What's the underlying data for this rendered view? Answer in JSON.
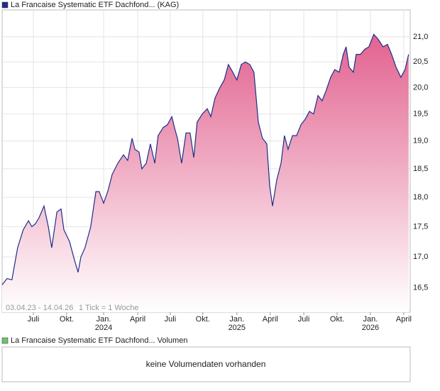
{
  "chart_data": {
    "type": "area",
    "log_scale": true,
    "grid": true,
    "series": [
      {
        "name": "La Francaise Systematic ETF Dachfond... (KAG)",
        "color": "#1f2d8a",
        "fill": "#e2628f",
        "x": [
          0,
          1.9,
          3.8,
          6.0,
          8.2,
          10.2,
          11.5,
          12.9,
          14.3,
          16.2,
          17.9,
          19.2,
          21.2,
          22.8,
          23.9,
          26.1,
          28.0,
          29.4,
          30.5,
          32.1,
          34.3,
          36.3,
          37.6,
          39.3,
          40.9,
          42.6,
          44.8,
          47.0,
          48.6,
          50.3,
          51.4,
          53.0,
          54.1,
          55.8,
          57.4,
          59.1,
          60.4,
          62.4,
          64.0,
          65.7,
          67.0,
          67.9,
          69.5,
          71.2,
          72.8,
          74.2,
          75.5,
          77.5,
          79.4,
          80.8,
          82.4,
          84.3,
          86.0,
          87.6,
          89.3,
          90.9,
          92.6,
          94.2,
          95.9,
          97.5,
          99.2,
          100.8,
          102.5,
          103.6,
          104.7,
          106.3,
          108.0,
          109.3,
          110.7,
          112.4,
          114.0,
          115.7,
          117.3,
          119.0,
          120.6,
          122.3,
          123.9,
          125.5,
          127.2,
          128.8,
          130.5,
          132.1,
          133.2,
          134.3,
          136.0,
          137.1,
          138.7,
          140.4,
          142.0,
          143.9,
          145.6,
          147.5,
          149.2,
          150.8,
          152.5,
          154.4,
          156.0,
          157.4
        ],
        "values": [
          16.55,
          16.65,
          16.63,
          17.15,
          17.45,
          17.6,
          17.5,
          17.55,
          17.65,
          17.85,
          17.5,
          17.15,
          17.75,
          17.8,
          17.45,
          17.25,
          16.95,
          16.75,
          17.0,
          17.15,
          17.5,
          18.1,
          18.1,
          17.9,
          18.1,
          18.4,
          18.6,
          18.75,
          18.65,
          19.05,
          18.85,
          18.8,
          18.5,
          18.6,
          18.95,
          18.6,
          19.1,
          19.25,
          19.3,
          19.45,
          19.2,
          19.05,
          18.6,
          19.15,
          19.15,
          18.7,
          19.35,
          19.5,
          19.6,
          19.45,
          19.8,
          20.0,
          20.15,
          20.45,
          20.3,
          20.15,
          20.45,
          20.5,
          20.45,
          20.3,
          19.35,
          19.05,
          18.95,
          18.2,
          17.85,
          18.3,
          18.6,
          19.1,
          18.85,
          19.1,
          19.1,
          19.3,
          19.4,
          19.55,
          19.5,
          19.85,
          19.75,
          19.95,
          20.2,
          20.35,
          20.3,
          20.65,
          20.8,
          20.4,
          20.3,
          20.65,
          20.65,
          20.75,
          20.8,
          21.05,
          20.95,
          20.8,
          20.85,
          20.65,
          20.4,
          20.2,
          20.35,
          20.65
        ]
      }
    ],
    "xlim": [
      0,
      158
    ],
    "xticks": [
      {
        "value": 12.1,
        "label": "Juli"
      },
      {
        "value": 25.0,
        "label": "Okt."
      },
      {
        "value": 39.3,
        "label": "Jan."
      },
      {
        "value": 52.5,
        "label": "April"
      },
      {
        "value": 65.1,
        "label": "Juli"
      },
      {
        "value": 77.7,
        "label": "Okt."
      },
      {
        "value": 90.9,
        "label": "Jan."
      },
      {
        "value": 103.8,
        "label": "April"
      },
      {
        "value": 116.8,
        "label": "Juli"
      },
      {
        "value": 129.7,
        "label": "Okt."
      },
      {
        "value": 142.6,
        "label": "Jan."
      },
      {
        "value": 155.5,
        "label": "April"
      }
    ],
    "year_labels": [
      {
        "value": 39.3,
        "label": "2024"
      },
      {
        "value": 90.9,
        "label": "2025"
      },
      {
        "value": 142.6,
        "label": "2026"
      }
    ],
    "ylim": [
      16.12,
      21.55
    ],
    "yticks": [
      {
        "value": 16.5,
        "label": "16,5"
      },
      {
        "value": 17,
        "label": "17,0"
      },
      {
        "value": 17.5,
        "label": "17,5"
      },
      {
        "value": 18,
        "label": "18,0"
      },
      {
        "value": 18.5,
        "label": "18,5"
      },
      {
        "value": 19,
        "label": "19,0"
      },
      {
        "value": 19.5,
        "label": "19,5"
      },
      {
        "value": 20,
        "label": "20,0"
      },
      {
        "value": 20.5,
        "label": "20,5"
      },
      {
        "value": 21,
        "label": "21,0"
      }
    ],
    "range_label": "03.04.23 - 14.04.26",
    "tick_note": "1 Tick = 1 Woche",
    "volume_panel": {
      "legend": "La Francaise Systematic ETF Dachfond... Volumen",
      "legend_color": "#6cc46c",
      "message": "keine Volumendaten vorhanden"
    }
  }
}
